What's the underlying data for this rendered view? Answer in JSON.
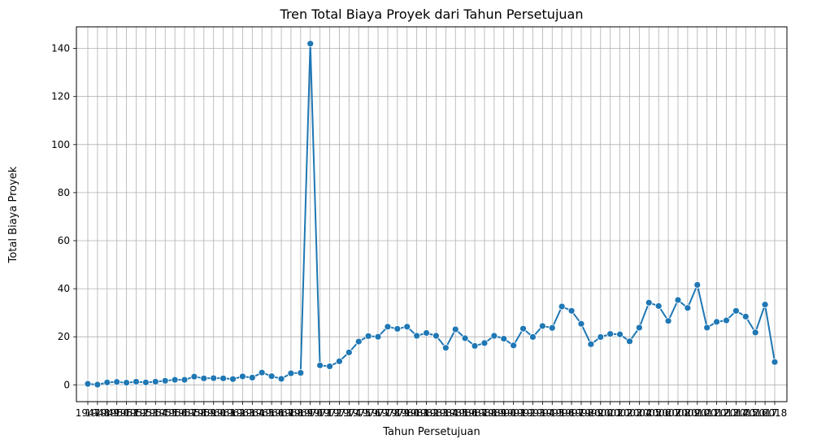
{
  "chart_data": {
    "type": "line",
    "title": "Tren Total Biaya Proyek dari Tahun Persetujuan",
    "xlabel": "Tahun Persetujuan",
    "ylabel": "Total Biaya Proyek",
    "ylim": [
      -7,
      149
    ],
    "y_ticks": [
      0,
      20,
      40,
      60,
      80,
      100,
      120,
      140
    ],
    "grid": true,
    "line_color": "#1f77b4",
    "grid_color": "#b0b0b0",
    "x": [
      "1947",
      "1948",
      "1949",
      "1950",
      "1951",
      "1952",
      "1953",
      "1954",
      "1955",
      "1956",
      "1957",
      "1958",
      "1959",
      "1960",
      "1961",
      "1962",
      "1963",
      "1964",
      "1965",
      "1966",
      "1967",
      "1968",
      "1969",
      "1970",
      "1971",
      "1972",
      "1973",
      "1974",
      "1975",
      "1976",
      "1977",
      "1978",
      "1979",
      "1980",
      "1981",
      "1982",
      "1983",
      "1984",
      "1985",
      "1986",
      "1987",
      "1988",
      "1989",
      "1990",
      "1991",
      "1992",
      "1993",
      "1994",
      "1995",
      "1996",
      "1997",
      "1998",
      "1999",
      "2000",
      "2001",
      "2002",
      "2003",
      "2004",
      "2005",
      "2006",
      "2007",
      "2008",
      "2009",
      "2010",
      "2011",
      "2012",
      "2013",
      "2014",
      "2015",
      "2016",
      "2017",
      "2018"
    ],
    "values": [
      0.4,
      0.1,
      1.0,
      1.2,
      0.9,
      1.3,
      1.0,
      1.3,
      1.7,
      2.1,
      2.1,
      3.4,
      2.7,
      2.8,
      2.7,
      2.4,
      3.5,
      3.0,
      5.1,
      3.6,
      2.5,
      4.8,
      5.0,
      142.0,
      8.1,
      7.7,
      9.8,
      13.5,
      18.0,
      20.3,
      20.0,
      24.2,
      23.3,
      24.2,
      20.4,
      21.6,
      20.4,
      15.4,
      23.1,
      19.4,
      16.2,
      17.4,
      20.4,
      19.2,
      16.4,
      23.4,
      19.9,
      24.5,
      23.7,
      32.6,
      30.8,
      25.4,
      16.9,
      19.9,
      21.2,
      21.0,
      18.1,
      23.8,
      34.2,
      32.8,
      26.6,
      35.3,
      32.0,
      41.6,
      23.8,
      26.2,
      26.8,
      30.8,
      28.4,
      21.8,
      33.4,
      9.5
    ]
  }
}
